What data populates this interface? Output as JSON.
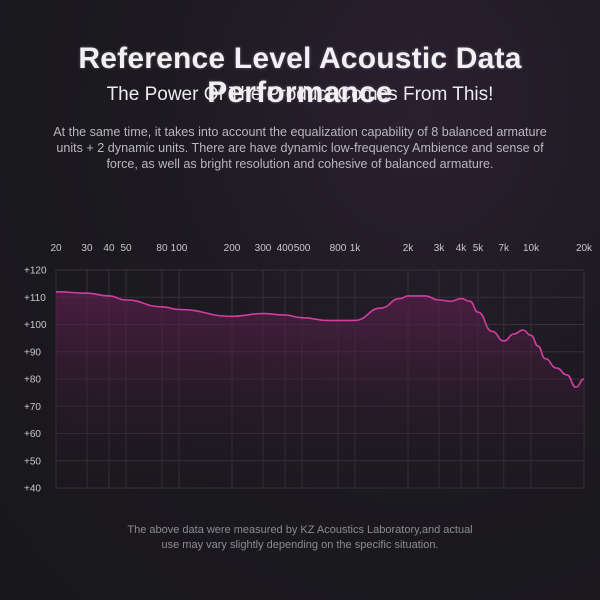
{
  "header": {
    "title": "Reference Level Acoustic Data Performance",
    "subtitle": "The Power Of The Product Comes From This!",
    "description": "At the same time, it takes into account the equalization capability of 8 balanced armature units + 2 dynamic units. There are have dynamic low-frequency Ambience and sense of force, as well as bright resolution and cohesive of balanced armature."
  },
  "footer": {
    "note_line1": "The above data were measured by KZ Acoustics Laboratory,and actual",
    "note_line2": "use may vary slightly depending on the specific situation."
  },
  "colors": {
    "curve": "#d23ea0",
    "fill_top": "#5a1f4c",
    "grid": "#3a2f38"
  },
  "chart_data": {
    "type": "line",
    "title": "",
    "xlabel": "",
    "ylabel": "",
    "x_scale": "log",
    "xlim": [
      20,
      20000
    ],
    "ylim": [
      40,
      120
    ],
    "grid": true,
    "x_tick_values": [
      20,
      30,
      40,
      50,
      80,
      100,
      200,
      300,
      400,
      500,
      800,
      1000,
      2000,
      3000,
      4000,
      5000,
      7000,
      10000,
      20000
    ],
    "x_tick_labels": [
      "20",
      "30",
      "40",
      "50",
      "80",
      "100",
      "200",
      "300",
      "400",
      "500",
      "800",
      "1k",
      "2k",
      "3k",
      "4k",
      "5k",
      "7k",
      "10k",
      "20k"
    ],
    "y_tick_values": [
      120,
      110,
      100,
      90,
      80,
      70,
      60,
      50,
      40
    ],
    "y_tick_labels": [
      "+120",
      "+110",
      "+100",
      "+90",
      "+80",
      "+70",
      "+60",
      "+50",
      "+40"
    ],
    "series": [
      {
        "x": [
          20,
          30,
          40,
          50,
          80,
          100,
          200,
          300,
          400,
          500,
          700,
          1000,
          1400,
          1800,
          2000,
          2500,
          3000,
          3500,
          4000,
          4500,
          5000,
          6000,
          7000,
          8000,
          9000,
          10000,
          11000,
          12000,
          14000,
          16000,
          18000,
          20000
        ],
        "y": [
          112,
          111.5,
          110.5,
          109,
          106.5,
          105.5,
          103,
          104,
          103.5,
          102.5,
          101.5,
          101.5,
          106,
          109.5,
          110.5,
          110.5,
          109,
          108.5,
          109.5,
          108.5,
          104.5,
          97.5,
          94,
          96.5,
          98,
          96,
          92,
          87.5,
          84,
          81.5,
          77,
          80
        ]
      }
    ]
  }
}
